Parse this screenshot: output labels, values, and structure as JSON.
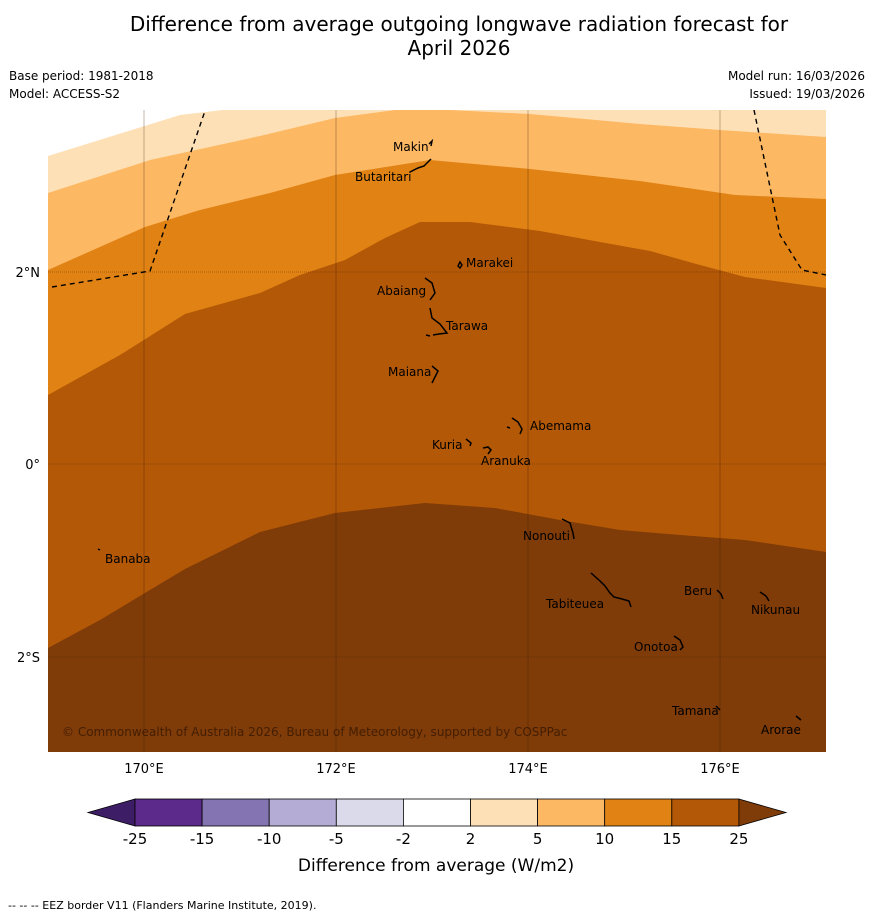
{
  "title_line1": "Difference from average outgoing longwave radiation forecast for",
  "title_line2": "April 2026",
  "meta": {
    "base_period": "Base period: 1981-2018",
    "model": "Model: ACCESS-S2",
    "model_run": "Model run: 16/03/2026",
    "issued": "Issued: 19/03/2026"
  },
  "map": {
    "lon_ticks": [
      "170°E",
      "172°E",
      "174°E",
      "176°E"
    ],
    "lat_ticks": [
      "2°N",
      "0°",
      "2°S"
    ],
    "copyright": "© Commonwealth of Australia 2026, Bureau of Meteorology, supported by COSPPac",
    "islands": [
      {
        "name": "Makin",
        "lon": 173.0,
        "lat": 3.35
      },
      {
        "name": "Butaritari",
        "lon": 172.9,
        "lat": 3.1
      },
      {
        "name": "Marakei",
        "lon": 173.3,
        "lat": 2.0
      },
      {
        "name": "Abaiang",
        "lon": 172.9,
        "lat": 1.85
      },
      {
        "name": "Tarawa",
        "lon": 173.0,
        "lat": 1.4
      },
      {
        "name": "Maiana",
        "lon": 173.0,
        "lat": 0.92
      },
      {
        "name": "Abemama",
        "lon": 173.85,
        "lat": 0.4
      },
      {
        "name": "Kuria",
        "lon": 173.4,
        "lat": 0.22
      },
      {
        "name": "Aranuka",
        "lon": 173.6,
        "lat": 0.15
      },
      {
        "name": "Nonouti",
        "lon": 174.4,
        "lat": -0.65
      },
      {
        "name": "Banaba",
        "lon": 169.55,
        "lat": -0.87
      },
      {
        "name": "Tabiteuea",
        "lon": 174.8,
        "lat": -1.35
      },
      {
        "name": "Beru",
        "lon": 176.0,
        "lat": -1.35
      },
      {
        "name": "Nikunau",
        "lon": 176.45,
        "lat": -1.38
      },
      {
        "name": "Onotoa",
        "lon": 175.55,
        "lat": -1.85
      },
      {
        "name": "Tamana",
        "lon": 176.0,
        "lat": -2.5
      },
      {
        "name": "Arorae",
        "lon": 176.8,
        "lat": -2.63
      }
    ]
  },
  "legend": {
    "label": "Difference from average (W/m2)",
    "ticks": [
      "-25",
      "-15",
      "-10",
      "-5",
      "-2",
      "2",
      "5",
      "10",
      "15",
      "25"
    ],
    "colors": [
      "#3d1e66",
      "#5b2a8a",
      "#8475b2",
      "#b4acd4",
      "#dadaeb",
      "#ffffff",
      "#fee0b6",
      "#fdb863",
      "#e08214",
      "#b35806",
      "#7f3b08"
    ]
  },
  "footer": "--  --  -- EEZ border V11 (Flanders Marine Institute, 2019)."
}
